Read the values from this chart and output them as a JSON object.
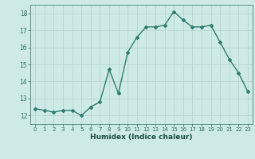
{
  "x": [
    0,
    1,
    2,
    3,
    4,
    5,
    6,
    7,
    8,
    9,
    10,
    11,
    12,
    13,
    14,
    15,
    16,
    17,
    18,
    19,
    20,
    21,
    22,
    23
  ],
  "y": [
    12.4,
    12.3,
    12.2,
    12.3,
    12.3,
    12.0,
    12.5,
    12.8,
    14.7,
    13.3,
    15.7,
    16.6,
    17.2,
    17.2,
    17.3,
    18.1,
    17.6,
    17.2,
    17.2,
    17.3,
    16.3,
    15.3,
    14.5,
    13.4
  ],
  "xlim": [
    -0.5,
    23.5
  ],
  "ylim": [
    11.5,
    18.5
  ],
  "yticks": [
    12,
    13,
    14,
    15,
    16,
    17,
    18
  ],
  "xticks": [
    0,
    1,
    2,
    3,
    4,
    5,
    6,
    7,
    8,
    9,
    10,
    11,
    12,
    13,
    14,
    15,
    16,
    17,
    18,
    19,
    20,
    21,
    22,
    23
  ],
  "xlabel": "Humidex (Indice chaleur)",
  "line_color": "#2e7d6e",
  "marker": "D",
  "marker_size": 2.0,
  "bg_color": "#ceeae6",
  "grid_color": "#b8d4d0",
  "tick_color": "#2e6b5e",
  "label_color": "#1a4a40",
  "line_width": 1.0
}
